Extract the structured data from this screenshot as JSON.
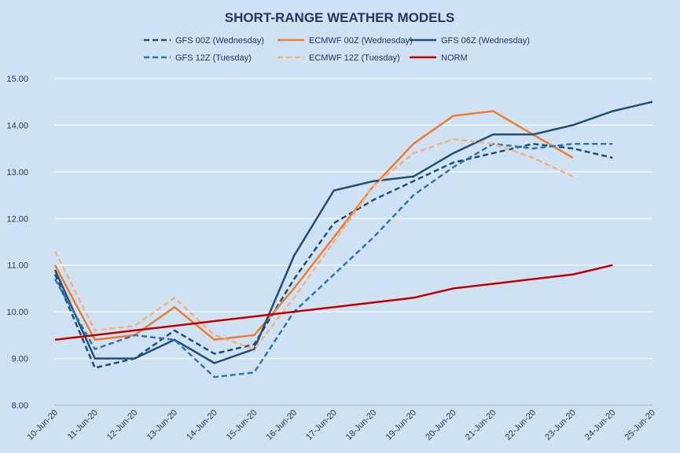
{
  "chart_data": {
    "type": "line",
    "title": "SHORT-RANGE WEATHER MODELS",
    "categories": [
      "10-Jun-20",
      "11-Jun-20",
      "12-Jun-20",
      "13-Jun-20",
      "14-Jun-20",
      "15-Jun-20",
      "16-Jun-20",
      "17-Jun-20",
      "18-Jun-20",
      "19-Jun-20",
      "20-Jun-20",
      "21-Jun-20",
      "22-Jun-20",
      "23-Jun-20",
      "24-Jun-20",
      "25-Jun-20"
    ],
    "ylim": [
      8.0,
      15.0
    ],
    "yticks": [
      "8.00",
      "9.00",
      "10.00",
      "11.00",
      "12.00",
      "13.00",
      "14.00",
      "15.00"
    ],
    "ytick_values": [
      8,
      9,
      10,
      11,
      12,
      13,
      14,
      15
    ],
    "grid": true,
    "legend_position": "top",
    "series": [
      {
        "name": "GFS 00Z (Wednesday)",
        "color": "#1f4e79",
        "dash": true,
        "values": [
          10.8,
          8.8,
          9.0,
          9.6,
          9.1,
          9.3,
          10.7,
          11.9,
          12.4,
          12.8,
          13.2,
          13.4,
          13.6,
          13.5,
          13.3,
          null
        ]
      },
      {
        "name": "ECMWF 00Z (Wednesday)",
        "color": "#ed7d31",
        "dash": false,
        "values": [
          11.0,
          9.4,
          9.5,
          10.1,
          9.4,
          9.5,
          10.5,
          11.6,
          12.7,
          13.6,
          14.2,
          14.3,
          13.8,
          13.3,
          null,
          null
        ]
      },
      {
        "name": "GFS 06Z (Wednesday)",
        "color": "#1f4e79",
        "dash": false,
        "values": [
          10.9,
          9.0,
          9.0,
          9.4,
          8.9,
          9.2,
          11.2,
          12.6,
          12.8,
          12.9,
          13.4,
          13.8,
          13.8,
          14.0,
          14.3,
          14.5
        ]
      },
      {
        "name": "GFS 12Z (Tuesday)",
        "color": "#2e75b6",
        "dash": true,
        "values": [
          10.7,
          9.2,
          9.5,
          9.4,
          8.6,
          8.7,
          10.0,
          10.8,
          11.6,
          12.5,
          13.1,
          13.6,
          13.5,
          13.6,
          13.6,
          null
        ]
      },
      {
        "name": "ECMWF 12Z (Tuesday)",
        "color": "#f4b183",
        "dash": true,
        "values": [
          11.3,
          9.6,
          9.7,
          10.3,
          9.5,
          9.2,
          10.3,
          11.5,
          12.7,
          13.4,
          13.7,
          13.6,
          13.3,
          12.9,
          null,
          null
        ]
      },
      {
        "name": "NORM",
        "color": "#c00000",
        "dash": false,
        "values": [
          9.4,
          9.5,
          9.6,
          9.7,
          9.8,
          9.9,
          10.0,
          10.1,
          10.2,
          10.3,
          10.5,
          10.6,
          10.7,
          10.8,
          11.0,
          null
        ]
      }
    ]
  }
}
